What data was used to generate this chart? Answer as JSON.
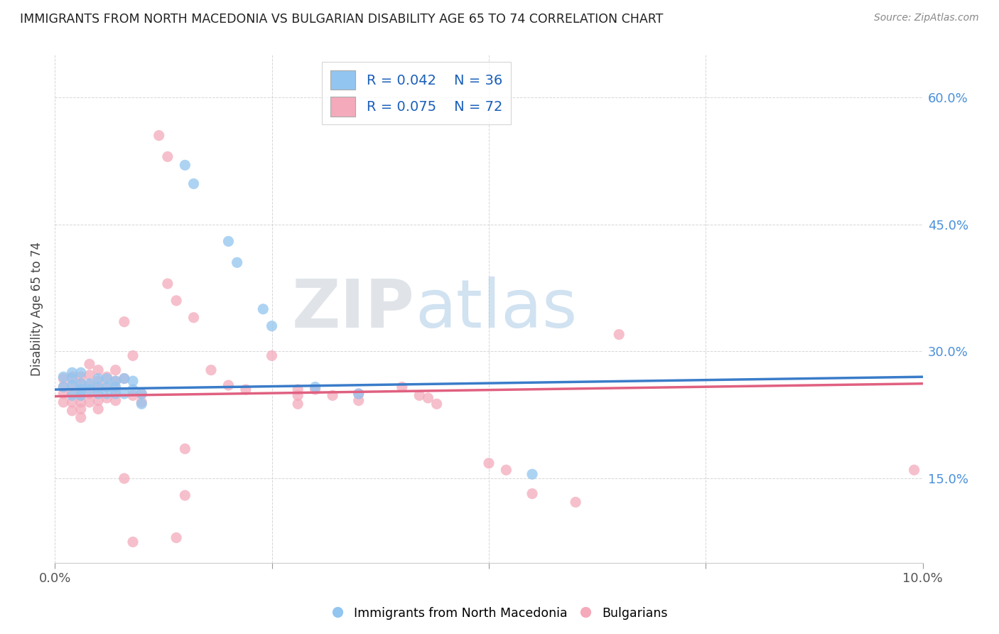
{
  "title": "IMMIGRANTS FROM NORTH MACEDONIA VS BULGARIAN DISABILITY AGE 65 TO 74 CORRELATION CHART",
  "source": "Source: ZipAtlas.com",
  "ylabel": "Disability Age 65 to 74",
  "xlim": [
    0.0,
    0.1
  ],
  "ylim": [
    0.05,
    0.65
  ],
  "y_ticks": [
    0.15,
    0.3,
    0.45,
    0.6
  ],
  "y_tick_labels": [
    "15.0%",
    "30.0%",
    "45.0%",
    "60.0%"
  ],
  "blue_color": "#92C5F0",
  "pink_color": "#F4AABB",
  "blue_line_color": "#3A7CC9",
  "pink_line_color": "#E06080",
  "background_color": "#ffffff",
  "grid_color": "#cccccc",
  "blue_scatter": [
    [
      0.001,
      0.27
    ],
    [
      0.001,
      0.258
    ],
    [
      0.002,
      0.268
    ],
    [
      0.002,
      0.248
    ],
    [
      0.002,
      0.26
    ],
    [
      0.002,
      0.275
    ],
    [
      0.003,
      0.262
    ],
    [
      0.003,
      0.255
    ],
    [
      0.003,
      0.248
    ],
    [
      0.003,
      0.275
    ],
    [
      0.004,
      0.262
    ],
    [
      0.004,
      0.255
    ],
    [
      0.005,
      0.268
    ],
    [
      0.005,
      0.258
    ],
    [
      0.005,
      0.25
    ],
    [
      0.006,
      0.268
    ],
    [
      0.006,
      0.258
    ],
    [
      0.006,
      0.25
    ],
    [
      0.007,
      0.265
    ],
    [
      0.007,
      0.258
    ],
    [
      0.007,
      0.25
    ],
    [
      0.008,
      0.268
    ],
    [
      0.008,
      0.25
    ],
    [
      0.009,
      0.265
    ],
    [
      0.009,
      0.255
    ],
    [
      0.01,
      0.25
    ],
    [
      0.01,
      0.238
    ],
    [
      0.015,
      0.52
    ],
    [
      0.016,
      0.498
    ],
    [
      0.02,
      0.43
    ],
    [
      0.021,
      0.405
    ],
    [
      0.024,
      0.35
    ],
    [
      0.025,
      0.33
    ],
    [
      0.03,
      0.258
    ],
    [
      0.035,
      0.25
    ],
    [
      0.055,
      0.155
    ]
  ],
  "pink_scatter": [
    [
      0.001,
      0.268
    ],
    [
      0.001,
      0.258
    ],
    [
      0.001,
      0.25
    ],
    [
      0.001,
      0.24
    ],
    [
      0.002,
      0.27
    ],
    [
      0.002,
      0.26
    ],
    [
      0.002,
      0.25
    ],
    [
      0.002,
      0.24
    ],
    [
      0.002,
      0.23
    ],
    [
      0.003,
      0.27
    ],
    [
      0.003,
      0.262
    ],
    [
      0.003,
      0.255
    ],
    [
      0.003,
      0.248
    ],
    [
      0.003,
      0.24
    ],
    [
      0.003,
      0.232
    ],
    [
      0.003,
      0.222
    ],
    [
      0.004,
      0.285
    ],
    [
      0.004,
      0.272
    ],
    [
      0.004,
      0.26
    ],
    [
      0.004,
      0.25
    ],
    [
      0.004,
      0.24
    ],
    [
      0.005,
      0.278
    ],
    [
      0.005,
      0.265
    ],
    [
      0.005,
      0.255
    ],
    [
      0.005,
      0.242
    ],
    [
      0.005,
      0.232
    ],
    [
      0.006,
      0.27
    ],
    [
      0.006,
      0.258
    ],
    [
      0.006,
      0.245
    ],
    [
      0.007,
      0.278
    ],
    [
      0.007,
      0.265
    ],
    [
      0.007,
      0.255
    ],
    [
      0.007,
      0.242
    ],
    [
      0.008,
      0.335
    ],
    [
      0.008,
      0.268
    ],
    [
      0.008,
      0.15
    ],
    [
      0.009,
      0.295
    ],
    [
      0.009,
      0.248
    ],
    [
      0.009,
      0.075
    ],
    [
      0.01,
      0.25
    ],
    [
      0.01,
      0.24
    ],
    [
      0.012,
      0.555
    ],
    [
      0.013,
      0.53
    ],
    [
      0.013,
      0.38
    ],
    [
      0.014,
      0.36
    ],
    [
      0.014,
      0.08
    ],
    [
      0.015,
      0.185
    ],
    [
      0.015,
      0.13
    ],
    [
      0.016,
      0.34
    ],
    [
      0.018,
      0.278
    ],
    [
      0.02,
      0.26
    ],
    [
      0.022,
      0.255
    ],
    [
      0.025,
      0.295
    ],
    [
      0.028,
      0.255
    ],
    [
      0.028,
      0.248
    ],
    [
      0.028,
      0.238
    ],
    [
      0.03,
      0.255
    ],
    [
      0.032,
      0.248
    ],
    [
      0.035,
      0.25
    ],
    [
      0.035,
      0.242
    ],
    [
      0.04,
      0.258
    ],
    [
      0.042,
      0.248
    ],
    [
      0.043,
      0.245
    ],
    [
      0.044,
      0.238
    ],
    [
      0.05,
      0.168
    ],
    [
      0.052,
      0.16
    ],
    [
      0.055,
      0.132
    ],
    [
      0.06,
      0.122
    ],
    [
      0.065,
      0.32
    ],
    [
      0.099,
      0.16
    ]
  ]
}
